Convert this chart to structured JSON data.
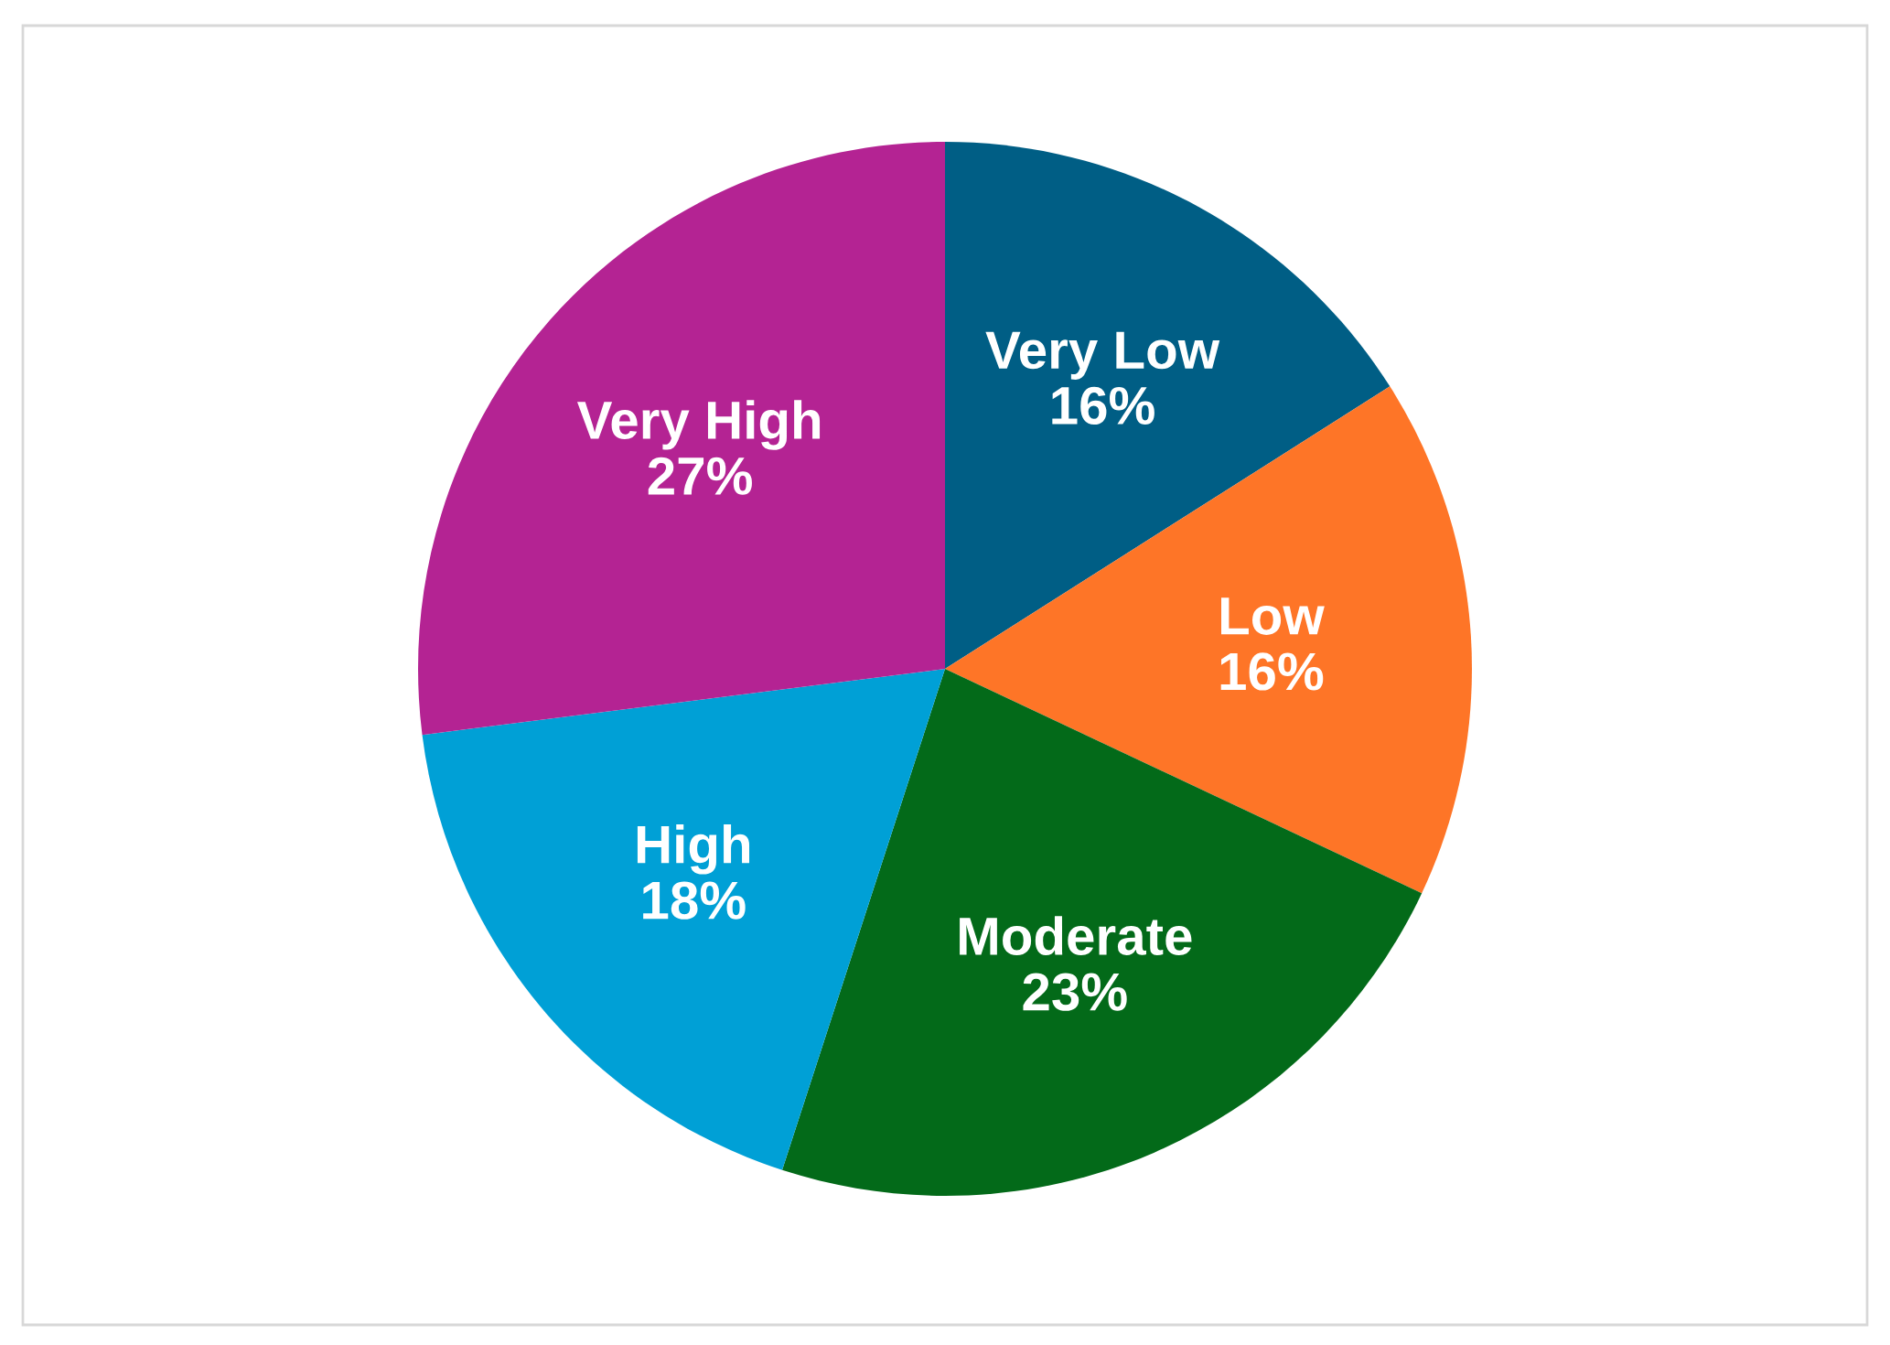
{
  "chart_data": {
    "type": "pie",
    "categories": [
      "Very Low",
      "Low",
      "Moderate",
      "High",
      "Very High"
    ],
    "values": [
      16,
      16,
      23,
      18,
      27
    ],
    "value_labels": [
      "16%",
      "16%",
      "23%",
      "18%",
      "27%"
    ],
    "colors": [
      "#005e85",
      "#fe7527",
      "#036a19",
      "#00a0d6",
      "#b42393"
    ]
  }
}
